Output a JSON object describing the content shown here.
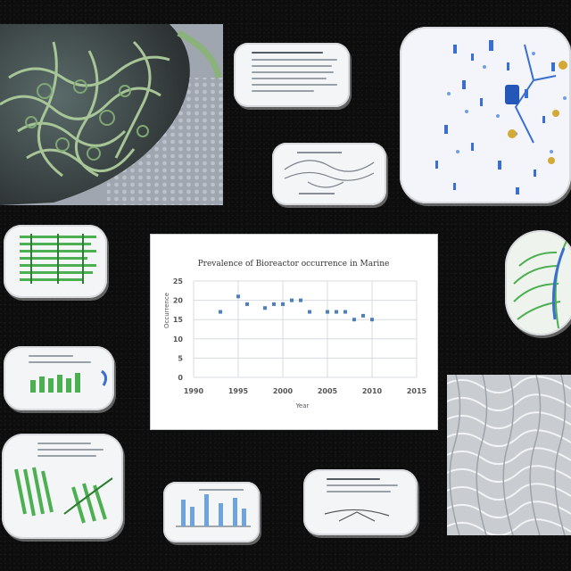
{
  "chart": {
    "title": "Prevalence of Bioreactor occurrence in Marine",
    "xlabel": "Year",
    "ylabel": "Occurrence",
    "x_ticks": [
      "1990",
      "1995",
      "2000",
      "2005",
      "2010",
      "2015"
    ],
    "y_ticks": [
      "0",
      "5",
      "10",
      "15",
      "20",
      "25"
    ]
  },
  "chart_data": {
    "type": "scatter",
    "title": "Prevalence of Bioreactor occurrence in Marine",
    "xlabel": "Year",
    "ylabel": "Occurrence",
    "xlim": [
      1990,
      2015
    ],
    "ylim": [
      0,
      25
    ],
    "grid": true,
    "x": [
      1993,
      1995,
      1996,
      1998,
      1999,
      2000,
      2001,
      2002,
      2003,
      2005,
      2006,
      2007,
      2008,
      2009,
      2010
    ],
    "y": [
      17,
      21,
      19,
      18,
      19,
      19,
      20,
      20,
      17,
      17,
      17,
      17,
      15,
      16,
      15
    ]
  },
  "colors": {
    "background": "#0d0d0d",
    "card": "#f4f5f7",
    "green": "#4caf50",
    "blue": "#3a6fd0",
    "gold": "#d4a935"
  }
}
